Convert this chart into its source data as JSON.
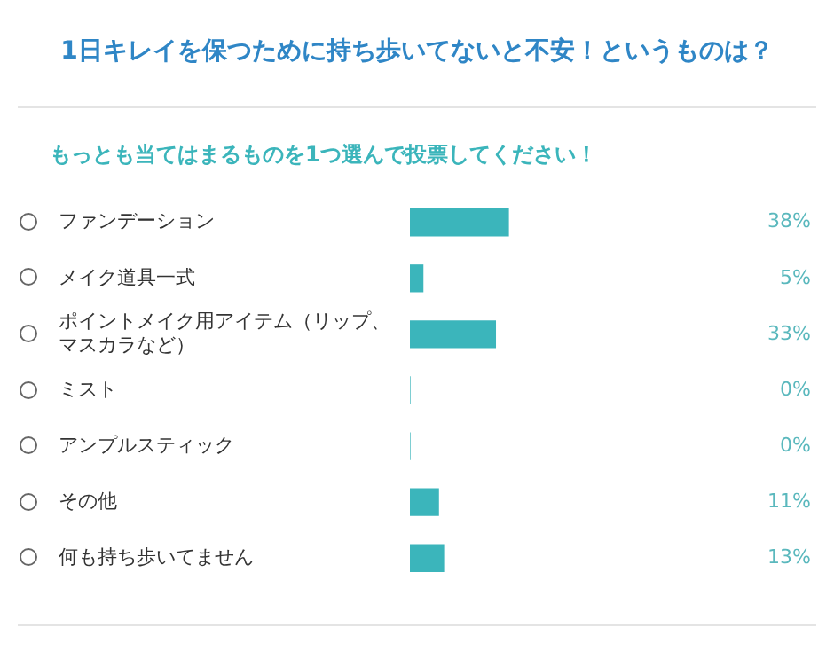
{
  "chart_data": {
    "type": "bar",
    "orientation": "horizontal",
    "title": "1日キレイを保つために持ち歩いてないと不安！というものは？",
    "subtitle": "もっとも当てはまるものを1つ選んで投票してください！",
    "categories": [
      "ファンデーション",
      "メイク道具一式",
      "ポイントメイク用アイテム（リップ、マスカラなど）",
      "ミスト",
      "アンプルスティック",
      "その他",
      "何も持ち歩いてません"
    ],
    "values": [
      38,
      5,
      33,
      0,
      0,
      11,
      13
    ],
    "value_labels": [
      "38%",
      "5%",
      "33%",
      "0%",
      "0%",
      "11%",
      "13%"
    ],
    "color": "#3bb5bb",
    "tick_labels": "y",
    "legend": false
  }
}
